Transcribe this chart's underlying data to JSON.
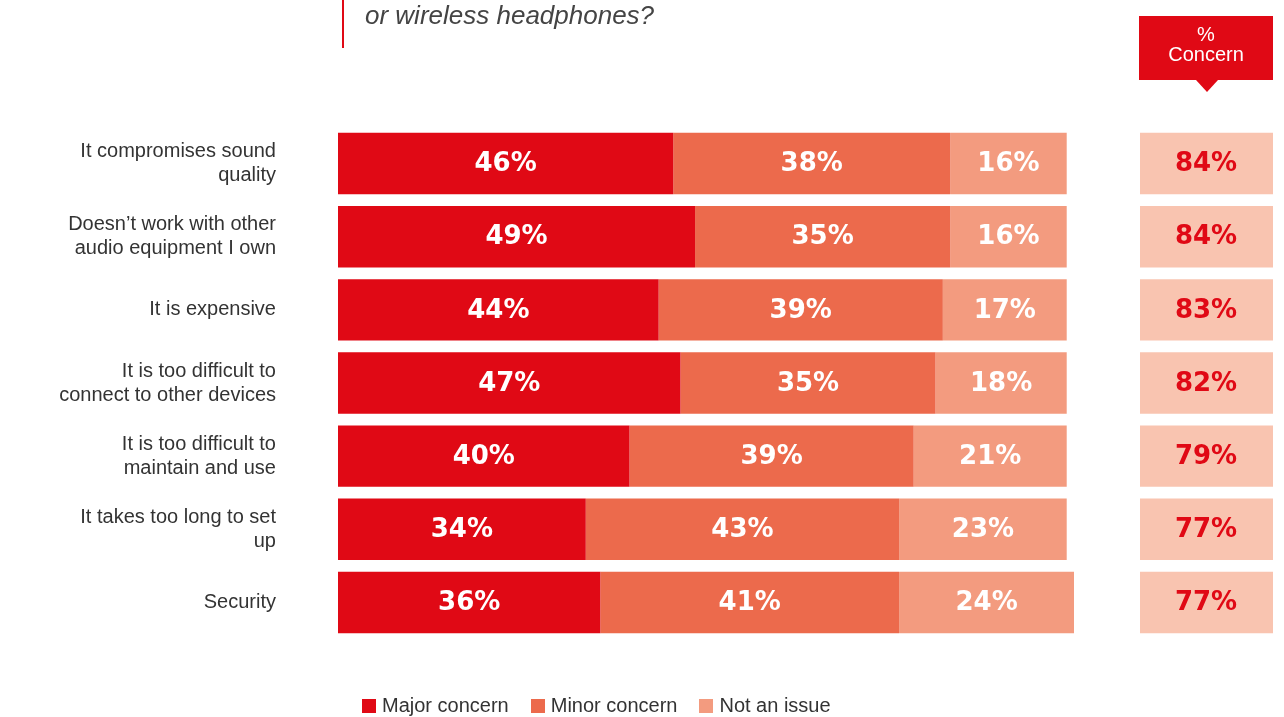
{
  "chart_data": {
    "type": "bar",
    "orientation": "horizontal",
    "stacked": true,
    "title": "or wireless headphones?",
    "categories": [
      "It compromises sound quality",
      "Doesn’t work with other audio equipment I own",
      "It is expensive",
      "It is too difficult to connect to other devices",
      "It is too difficult to maintain and use",
      "It takes too long to set up",
      "Security"
    ],
    "series": [
      {
        "name": "Major concern",
        "color": "#e00915",
        "values": [
          46,
          49,
          44,
          47,
          40,
          34,
          36
        ],
        "value_labels": [
          "46%",
          "49%",
          "44%",
          "47%",
          "40%",
          "34%",
          "36%"
        ]
      },
      {
        "name": "Minor concern",
        "color": "#ec6a4c",
        "values": [
          38,
          35,
          39,
          35,
          39,
          43,
          41
        ],
        "value_labels": [
          "38%",
          "35%",
          "39%",
          "35%",
          "39%",
          "43%",
          "41%"
        ]
      },
      {
        "name": "Not an issue",
        "color": "#f39b7f",
        "values": [
          16,
          16,
          17,
          18,
          21,
          23,
          24
        ],
        "value_labels": [
          "16%",
          "16%",
          "17%",
          "18%",
          "21%",
          "23%",
          "24%"
        ]
      }
    ],
    "tick_labels": "y",
    "legend": "bottom",
    "annotations": [
      "% Concern",
      "84%",
      "84%",
      "83%",
      "82%",
      "79%",
      "77%",
      "77%"
    ]
  }
}
